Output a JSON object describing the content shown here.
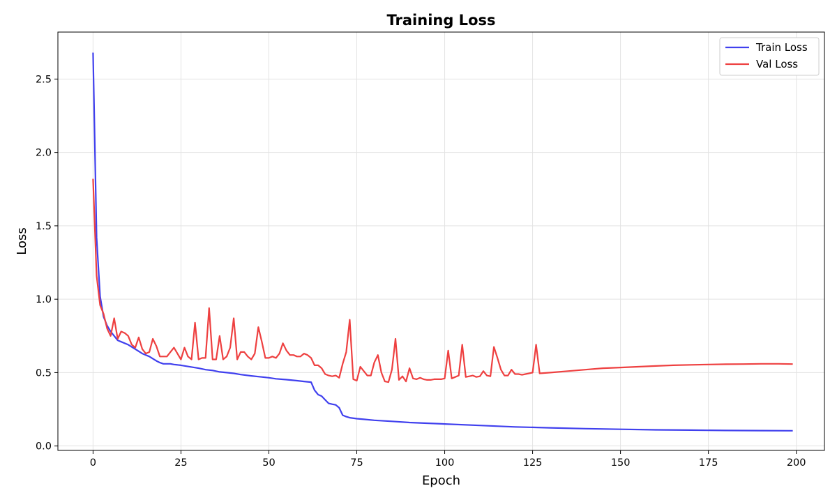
{
  "chart_data": {
    "type": "line",
    "title": "Training Loss",
    "xlabel": "Epoch",
    "ylabel": "Loss",
    "xlim": [
      -10,
      208
    ],
    "ylim": [
      -0.03,
      2.82
    ],
    "xticks": [
      0,
      25,
      50,
      75,
      100,
      125,
      150,
      175,
      200
    ],
    "yticks": [
      0.0,
      0.5,
      1.0,
      1.5,
      2.0,
      2.5
    ],
    "grid": true,
    "legend_position": "top-right",
    "series": [
      {
        "name": "Train Loss",
        "color": "#4040ee",
        "x": [
          0,
          1,
          2,
          3,
          4,
          5,
          6,
          7,
          8,
          10,
          12,
          14,
          16,
          17,
          18,
          19,
          20,
          21,
          22,
          23,
          25,
          28,
          30,
          32,
          34,
          36,
          38,
          40,
          42,
          45,
          48,
          50,
          52,
          55,
          58,
          60,
          62,
          63,
          64,
          65,
          66,
          67,
          68,
          69,
          70,
          71,
          72,
          73,
          75,
          77,
          80,
          85,
          90,
          100,
          110,
          120,
          130,
          140,
          150,
          160,
          170,
          180,
          190,
          199
        ],
        "y": [
          2.68,
          1.42,
          1.02,
          0.88,
          0.82,
          0.78,
          0.75,
          0.72,
          0.71,
          0.69,
          0.66,
          0.63,
          0.61,
          0.595,
          0.58,
          0.568,
          0.56,
          0.56,
          0.56,
          0.555,
          0.55,
          0.538,
          0.53,
          0.52,
          0.515,
          0.505,
          0.5,
          0.495,
          0.487,
          0.478,
          0.47,
          0.465,
          0.458,
          0.452,
          0.445,
          0.44,
          0.435,
          0.38,
          0.35,
          0.34,
          0.315,
          0.29,
          0.285,
          0.28,
          0.26,
          0.21,
          0.2,
          0.193,
          0.186,
          0.182,
          0.175,
          0.168,
          0.16,
          0.15,
          0.14,
          0.13,
          0.124,
          0.118,
          0.114,
          0.11,
          0.108,
          0.106,
          0.105,
          0.104
        ]
      },
      {
        "name": "Val Loss",
        "color": "#ee4040",
        "x": [
          0,
          1,
          2,
          3,
          4,
          5,
          6,
          7,
          8,
          9,
          10,
          11,
          12,
          13,
          14,
          15,
          16,
          17,
          18,
          19,
          20,
          21,
          22,
          23,
          24,
          25,
          26,
          27,
          28,
          29,
          30,
          31,
          32,
          33,
          34,
          35,
          36,
          37,
          38,
          39,
          40,
          41,
          42,
          43,
          44,
          45,
          46,
          47,
          48,
          49,
          50,
          51,
          52,
          53,
          54,
          55,
          56,
          57,
          58,
          59,
          60,
          61,
          62,
          63,
          64,
          65,
          66,
          67,
          68,
          69,
          70,
          71,
          72,
          73,
          74,
          75,
          76,
          77,
          78,
          79,
          80,
          81,
          82,
          83,
          84,
          85,
          86,
          87,
          88,
          89,
          90,
          91,
          92,
          93,
          94,
          95,
          96,
          97,
          98,
          99,
          100,
          101,
          102,
          103,
          104,
          105,
          106,
          107,
          108,
          109,
          110,
          111,
          112,
          113,
          114,
          115,
          116,
          117,
          118,
          119,
          120,
          121,
          122,
          123,
          124,
          125,
          126,
          127,
          130,
          135,
          140,
          145,
          150,
          155,
          160,
          165,
          170,
          175,
          180,
          185,
          190,
          195,
          199
        ],
        "y": [
          1.82,
          1.16,
          0.96,
          0.9,
          0.8,
          0.75,
          0.87,
          0.73,
          0.78,
          0.77,
          0.75,
          0.69,
          0.67,
          0.74,
          0.66,
          0.63,
          0.64,
          0.73,
          0.68,
          0.61,
          0.61,
          0.61,
          0.64,
          0.67,
          0.63,
          0.59,
          0.67,
          0.61,
          0.59,
          0.84,
          0.59,
          0.6,
          0.6,
          0.94,
          0.59,
          0.59,
          0.75,
          0.59,
          0.61,
          0.67,
          0.87,
          0.59,
          0.64,
          0.64,
          0.61,
          0.59,
          0.63,
          0.81,
          0.71,
          0.6,
          0.6,
          0.61,
          0.6,
          0.63,
          0.7,
          0.65,
          0.62,
          0.62,
          0.61,
          0.61,
          0.63,
          0.62,
          0.6,
          0.55,
          0.55,
          0.53,
          0.49,
          0.48,
          0.475,
          0.48,
          0.465,
          0.56,
          0.64,
          0.86,
          0.455,
          0.445,
          0.54,
          0.51,
          0.48,
          0.48,
          0.57,
          0.62,
          0.5,
          0.44,
          0.435,
          0.52,
          0.73,
          0.45,
          0.475,
          0.44,
          0.53,
          0.46,
          0.455,
          0.465,
          0.455,
          0.45,
          0.45,
          0.455,
          0.455,
          0.455,
          0.46,
          0.65,
          0.46,
          0.47,
          0.48,
          0.69,
          0.47,
          0.475,
          0.48,
          0.47,
          0.475,
          0.51,
          0.48,
          0.475,
          0.675,
          0.6,
          0.52,
          0.48,
          0.48,
          0.52,
          0.49,
          0.49,
          0.485,
          0.49,
          0.495,
          0.5,
          0.69,
          0.495,
          0.5,
          0.51,
          0.52,
          0.53,
          0.535,
          0.54,
          0.545,
          0.55,
          0.553,
          0.555,
          0.557,
          0.558,
          0.56,
          0.56,
          0.558
        ]
      }
    ]
  }
}
